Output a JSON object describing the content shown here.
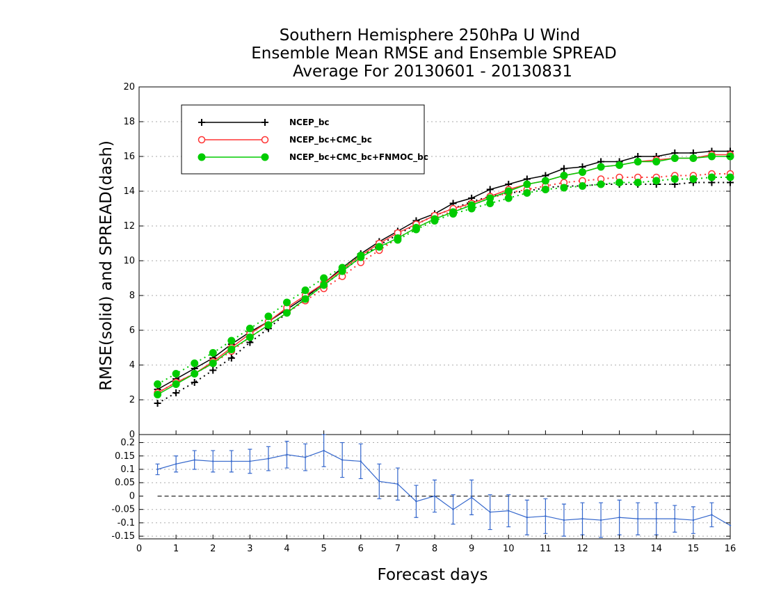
{
  "chart_data": {
    "type": "line",
    "title": [
      "Southern Hemisphere 250hPa U Wind",
      "Ensemble Mean RMSE and Ensemble SPREAD",
      "Average For 20130601 - 20130831"
    ],
    "xlabel": "Forecast days",
    "ylabel": "RMSE(solid) and SPREAD(dash)",
    "xlim": [
      0,
      16
    ],
    "ylim": [
      0,
      20
    ],
    "x_ticks": [
      "0",
      "1",
      "2",
      "3",
      "4",
      "5",
      "6",
      "7",
      "8",
      "9",
      "10",
      "11",
      "12",
      "13",
      "14",
      "15",
      "16"
    ],
    "y_ticks": [
      "0",
      "2",
      "4",
      "6",
      "8",
      "10",
      "12",
      "14",
      "16",
      "18",
      "20"
    ],
    "grid": true,
    "legend_position": "top-left",
    "x": [
      0.5,
      1,
      1.5,
      2,
      2.5,
      3,
      3.5,
      4,
      4.5,
      5,
      5.5,
      6,
      6.5,
      7,
      7.5,
      8,
      8.5,
      9,
      9.5,
      10,
      10.5,
      11,
      11.5,
      12,
      12.5,
      13,
      13.5,
      14,
      14.5,
      15,
      15.5,
      16
    ],
    "series": [
      {
        "name": "NCEP_bc",
        "color": "#000000",
        "marker": "plus",
        "rmse": [
          2.6,
          3.2,
          3.8,
          4.4,
          5.2,
          5.9,
          6.5,
          7.2,
          7.9,
          8.7,
          9.6,
          10.4,
          11.1,
          11.7,
          12.3,
          12.7,
          13.3,
          13.6,
          14.1,
          14.4,
          14.7,
          14.9,
          15.3,
          15.4,
          15.7,
          15.7,
          16.0,
          16.0,
          16.2,
          16.2,
          16.3,
          16.3
        ],
        "spread": [
          1.8,
          2.4,
          3.0,
          3.7,
          4.4,
          5.3,
          6.1,
          7.0,
          7.8,
          8.6,
          9.4,
          10.2,
          10.9,
          11.5,
          12.1,
          12.6,
          13.0,
          13.4,
          13.7,
          13.9,
          14.0,
          14.2,
          14.3,
          14.3,
          14.4,
          14.4,
          14.4,
          14.4,
          14.4,
          14.5,
          14.5,
          14.5
        ]
      },
      {
        "name": "NCEP_bc+CMC_bc",
        "color": "#ff3333",
        "marker": "open-circle",
        "rmse": [
          2.4,
          3.0,
          3.5,
          4.2,
          5.0,
          5.8,
          6.5,
          7.3,
          8.0,
          8.7,
          9.5,
          10.3,
          11.0,
          11.6,
          12.1,
          12.6,
          13.0,
          13.3,
          13.7,
          14.1,
          14.4,
          14.6,
          14.9,
          15.1,
          15.4,
          15.5,
          15.7,
          15.8,
          15.9,
          15.9,
          16.1,
          16.1
        ],
        "spread": [
          2.4,
          3.0,
          3.5,
          4.1,
          4.8,
          5.6,
          6.3,
          7.0,
          7.7,
          8.4,
          9.1,
          9.9,
          10.6,
          11.3,
          11.9,
          12.4,
          12.9,
          13.2,
          13.6,
          13.9,
          14.1,
          14.3,
          14.5,
          14.6,
          14.7,
          14.8,
          14.8,
          14.8,
          14.9,
          14.9,
          15.0,
          15.0
        ]
      },
      {
        "name": "NCEP_bc+CMC_bc+FNMOC_bc",
        "color": "#00cc00",
        "marker": "filled-circle",
        "rmse": [
          2.3,
          2.9,
          3.5,
          4.1,
          4.9,
          5.6,
          6.3,
          7.0,
          7.8,
          8.6,
          9.4,
          10.2,
          10.8,
          11.3,
          11.9,
          12.4,
          12.8,
          13.2,
          13.6,
          14.0,
          14.4,
          14.6,
          14.9,
          15.1,
          15.4,
          15.5,
          15.7,
          15.7,
          15.9,
          15.9,
          16.0,
          16.0
        ],
        "spread": [
          2.9,
          3.5,
          4.1,
          4.7,
          5.4,
          6.1,
          6.8,
          7.6,
          8.3,
          9.0,
          9.6,
          10.3,
          10.8,
          11.2,
          11.8,
          12.3,
          12.7,
          13.0,
          13.3,
          13.6,
          13.9,
          14.1,
          14.2,
          14.3,
          14.4,
          14.5,
          14.5,
          14.6,
          14.7,
          14.7,
          14.8,
          14.8
        ]
      }
    ],
    "difference_panel": {
      "color": "#3366cc",
      "ylim": [
        -0.16,
        0.23
      ],
      "y_ticks": [
        "0.2",
        "0.15",
        "0.1",
        "0.05",
        "0",
        "-0.05",
        "-0.1",
        "-0.15"
      ],
      "x": [
        0.5,
        1,
        1.5,
        2,
        2.5,
        3,
        3.5,
        4,
        4.5,
        5,
        5.5,
        6,
        6.5,
        7,
        7.5,
        8,
        8.5,
        9,
        9.5,
        10,
        10.5,
        11,
        11.5,
        12,
        12.5,
        13,
        13.5,
        14,
        14.5,
        15,
        15.5,
        16
      ],
      "values": [
        0.1,
        0.12,
        0.135,
        0.13,
        0.13,
        0.13,
        0.14,
        0.155,
        0.145,
        0.17,
        0.135,
        0.13,
        0.055,
        0.045,
        -0.02,
        0.0,
        -0.05,
        -0.005,
        -0.06,
        -0.055,
        -0.08,
        -0.075,
        -0.09,
        -0.085,
        -0.09,
        -0.08,
        -0.085,
        -0.085,
        -0.085,
        -0.09,
        -0.07,
        -0.11
      ],
      "err": [
        0.02,
        0.03,
        0.035,
        0.04,
        0.04,
        0.045,
        0.045,
        0.05,
        0.05,
        0.06,
        0.065,
        0.065,
        0.065,
        0.06,
        0.06,
        0.06,
        0.055,
        0.065,
        0.065,
        0.06,
        0.065,
        0.065,
        0.06,
        0.06,
        0.065,
        0.065,
        0.06,
        0.06,
        0.05,
        0.05,
        0.045,
        0.0
      ]
    }
  }
}
